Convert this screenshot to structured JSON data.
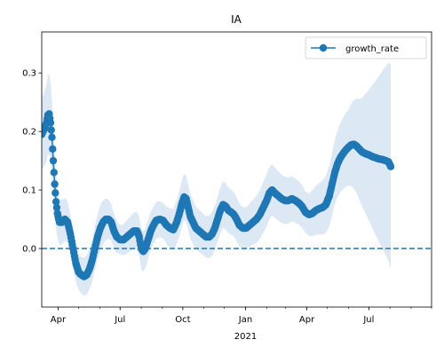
{
  "chart_data": {
    "type": "line",
    "title": "IA",
    "xlabel": "",
    "ylabel": "",
    "x_axis_type": "date",
    "xlim": [
      "2020-03-08",
      "2021-10-01"
    ],
    "ylim": [
      -0.1,
      0.37
    ],
    "x_tick_labels": [
      {
        "date": "2020-04-01",
        "label": "Apr"
      },
      {
        "date": "2020-07-01",
        "label": "Jul"
      },
      {
        "date": "2020-10-01",
        "label": "Oct"
      },
      {
        "date": "2021-01-01",
        "label": "Jan"
      },
      {
        "date": "2021-04-01",
        "label": "Apr"
      },
      {
        "date": "2021-07-01",
        "label": "Jul"
      }
    ],
    "x_secondary_label": {
      "date": "2021-01-01",
      "label": "2021"
    },
    "y_ticks": [
      {
        "value": 0.0,
        "label": "0.0"
      },
      {
        "value": 0.1,
        "label": "0.1"
      },
      {
        "value": 0.2,
        "label": "0.2"
      },
      {
        "value": 0.3,
        "label": "0.3"
      }
    ],
    "legend": {
      "position": "top-right",
      "entries": [
        "growth_rate"
      ]
    },
    "grid": false,
    "reference_line": {
      "y": 0.0,
      "style": "dashed",
      "color": "#1f77b4"
    },
    "colors": {
      "series": "#1f77b4",
      "band": "#dce8f4"
    },
    "series": [
      {
        "name": "growth_rate",
        "marker": "circle",
        "points": [
          [
            "2020-03-08",
            0.195
          ],
          [
            "2020-03-12",
            0.205
          ],
          [
            "2020-03-15",
            0.215
          ],
          [
            "2020-03-17",
            0.228
          ],
          [
            "2020-03-19",
            0.23
          ],
          [
            "2020-03-21",
            0.215
          ],
          [
            "2020-03-23",
            0.19
          ],
          [
            "2020-03-25",
            0.15
          ],
          [
            "2020-03-27",
            0.11
          ],
          [
            "2020-03-29",
            0.08
          ],
          [
            "2020-03-31",
            0.06
          ],
          [
            "2020-04-03",
            0.045
          ],
          [
            "2020-04-07",
            0.045
          ],
          [
            "2020-04-11",
            0.05
          ],
          [
            "2020-04-15",
            0.045
          ],
          [
            "2020-04-19",
            0.025
          ],
          [
            "2020-04-23",
            0.0
          ],
          [
            "2020-04-27",
            -0.025
          ],
          [
            "2020-05-01",
            -0.04
          ],
          [
            "2020-05-05",
            -0.045
          ],
          [
            "2020-05-09",
            -0.048
          ],
          [
            "2020-05-13",
            -0.045
          ],
          [
            "2020-05-17",
            -0.035
          ],
          [
            "2020-05-21",
            -0.02
          ],
          [
            "2020-05-25",
            0.0
          ],
          [
            "2020-05-29",
            0.02
          ],
          [
            "2020-06-02",
            0.035
          ],
          [
            "2020-06-06",
            0.045
          ],
          [
            "2020-06-10",
            0.05
          ],
          [
            "2020-06-14",
            0.05
          ],
          [
            "2020-06-18",
            0.045
          ],
          [
            "2020-06-22",
            0.03
          ],
          [
            "2020-06-26",
            0.02
          ],
          [
            "2020-07-01",
            0.015
          ],
          [
            "2020-07-06",
            0.015
          ],
          [
            "2020-07-11",
            0.02
          ],
          [
            "2020-07-16",
            0.025
          ],
          [
            "2020-07-21",
            0.03
          ],
          [
            "2020-07-26",
            0.03
          ],
          [
            "2020-07-29",
            0.02
          ],
          [
            "2020-08-01",
            0.0
          ],
          [
            "2020-08-04",
            -0.005
          ],
          [
            "2020-08-07",
            0.0
          ],
          [
            "2020-08-11",
            0.015
          ],
          [
            "2020-08-15",
            0.03
          ],
          [
            "2020-08-19",
            0.04
          ],
          [
            "2020-08-23",
            0.048
          ],
          [
            "2020-08-28",
            0.05
          ],
          [
            "2020-09-02",
            0.048
          ],
          [
            "2020-09-07",
            0.04
          ],
          [
            "2020-09-12",
            0.035
          ],
          [
            "2020-09-17",
            0.032
          ],
          [
            "2020-09-22",
            0.045
          ],
          [
            "2020-09-26",
            0.06
          ],
          [
            "2020-09-30",
            0.078
          ],
          [
            "2020-10-03",
            0.088
          ],
          [
            "2020-10-06",
            0.085
          ],
          [
            "2020-10-09",
            0.07
          ],
          [
            "2020-10-12",
            0.055
          ],
          [
            "2020-10-16",
            0.045
          ],
          [
            "2020-10-20",
            0.035
          ],
          [
            "2020-10-25",
            0.03
          ],
          [
            "2020-10-30",
            0.025
          ],
          [
            "2020-11-04",
            0.02
          ],
          [
            "2020-11-09",
            0.02
          ],
          [
            "2020-11-13",
            0.025
          ],
          [
            "2020-11-17",
            0.035
          ],
          [
            "2020-11-21",
            0.05
          ],
          [
            "2020-11-25",
            0.065
          ],
          [
            "2020-11-29",
            0.075
          ],
          [
            "2020-12-03",
            0.072
          ],
          [
            "2020-12-07",
            0.065
          ],
          [
            "2020-12-11",
            0.062
          ],
          [
            "2020-12-15",
            0.058
          ],
          [
            "2020-12-19",
            0.05
          ],
          [
            "2020-12-23",
            0.04
          ],
          [
            "2020-12-28",
            0.035
          ],
          [
            "2021-01-02",
            0.035
          ],
          [
            "2021-01-07",
            0.04
          ],
          [
            "2021-01-12",
            0.045
          ],
          [
            "2021-01-17",
            0.05
          ],
          [
            "2021-01-22",
            0.058
          ],
          [
            "2021-01-27",
            0.07
          ],
          [
            "2021-02-01",
            0.082
          ],
          [
            "2021-02-05",
            0.095
          ],
          [
            "2021-02-09",
            0.1
          ],
          [
            "2021-02-13",
            0.095
          ],
          [
            "2021-02-18",
            0.09
          ],
          [
            "2021-02-23",
            0.085
          ],
          [
            "2021-02-28",
            0.082
          ],
          [
            "2021-03-05",
            0.082
          ],
          [
            "2021-03-10",
            0.085
          ],
          [
            "2021-03-15",
            0.082
          ],
          [
            "2021-03-20",
            0.078
          ],
          [
            "2021-03-25",
            0.072
          ],
          [
            "2021-03-30",
            0.062
          ],
          [
            "2021-04-04",
            0.058
          ],
          [
            "2021-04-09",
            0.06
          ],
          [
            "2021-04-14",
            0.065
          ],
          [
            "2021-04-19",
            0.068
          ],
          [
            "2021-04-24",
            0.07
          ],
          [
            "2021-04-29",
            0.075
          ],
          [
            "2021-05-04",
            0.09
          ],
          [
            "2021-05-08",
            0.11
          ],
          [
            "2021-05-12",
            0.13
          ],
          [
            "2021-05-16",
            0.145
          ],
          [
            "2021-05-20",
            0.155
          ],
          [
            "2021-05-24",
            0.162
          ],
          [
            "2021-05-28",
            0.168
          ],
          [
            "2021-06-01",
            0.173
          ],
          [
            "2021-06-05",
            0.177
          ],
          [
            "2021-06-09",
            0.178
          ],
          [
            "2021-06-13",
            0.175
          ],
          [
            "2021-06-17",
            0.17
          ],
          [
            "2021-06-21",
            0.165
          ],
          [
            "2021-06-26",
            0.162
          ],
          [
            "2021-07-01",
            0.16
          ],
          [
            "2021-07-06",
            0.157
          ],
          [
            "2021-07-11",
            0.155
          ],
          [
            "2021-07-16",
            0.153
          ],
          [
            "2021-07-21",
            0.152
          ],
          [
            "2021-07-26",
            0.15
          ],
          [
            "2021-07-30",
            0.148
          ],
          [
            "2021-08-02",
            0.14
          ]
        ],
        "band_width": [
          [
            "2020-03-08",
            0.06
          ],
          [
            "2020-03-20",
            0.07
          ],
          [
            "2020-04-01",
            0.04
          ],
          [
            "2020-05-01",
            0.03
          ],
          [
            "2020-06-01",
            0.04
          ],
          [
            "2020-07-01",
            0.025
          ],
          [
            "2020-08-01",
            0.035
          ],
          [
            "2020-09-01",
            0.03
          ],
          [
            "2020-10-01",
            0.04
          ],
          [
            "2020-11-01",
            0.035
          ],
          [
            "2020-12-01",
            0.04
          ],
          [
            "2021-01-01",
            0.035
          ],
          [
            "2021-02-01",
            0.045
          ],
          [
            "2021-03-01",
            0.04
          ],
          [
            "2021-04-01",
            0.035
          ],
          [
            "2021-05-01",
            0.05
          ],
          [
            "2021-06-01",
            0.065
          ],
          [
            "2021-06-20",
            0.09
          ],
          [
            "2021-07-10",
            0.13
          ],
          [
            "2021-07-25",
            0.16
          ],
          [
            "2021-08-02",
            0.175
          ]
        ]
      }
    ]
  }
}
